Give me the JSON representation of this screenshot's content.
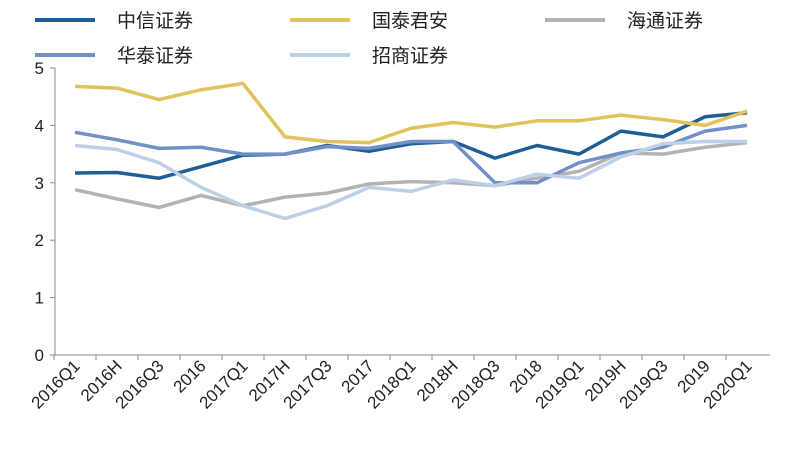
{
  "chart_data": {
    "type": "line",
    "title": "",
    "xlabel": "",
    "ylabel": "",
    "ylim": [
      0,
      5
    ],
    "yticks": [
      "0",
      "1",
      "2",
      "3",
      "4",
      "5"
    ],
    "grid": false,
    "legend": "top",
    "categories": [
      "2016Q1",
      "2016H",
      "2016Q3",
      "2016",
      "2017Q1",
      "2017H",
      "2017Q3",
      "2017",
      "2018Q1",
      "2018H",
      "2018Q3",
      "2018",
      "2019Q1",
      "2019H",
      "2019Q3",
      "2019",
      "2020Q1"
    ],
    "series": [
      {
        "name": "中信证券",
        "color": "#1f5f95",
        "values": [
          3.17,
          3.18,
          3.08,
          3.28,
          3.48,
          3.5,
          3.65,
          3.55,
          3.68,
          3.72,
          3.43,
          3.65,
          3.5,
          3.9,
          3.8,
          4.15,
          4.22
        ]
      },
      {
        "name": "国泰君安",
        "color": "#e2c25a",
        "values": [
          4.68,
          4.65,
          4.45,
          4.62,
          4.73,
          3.8,
          3.72,
          3.7,
          3.95,
          4.05,
          3.97,
          4.08,
          4.08,
          4.18,
          4.1,
          4.0,
          4.25
        ]
      },
      {
        "name": "海通证券",
        "color": "#b3b3b3",
        "values": [
          2.88,
          2.72,
          2.57,
          2.78,
          2.6,
          2.75,
          2.82,
          2.98,
          3.02,
          3.0,
          2.95,
          3.08,
          3.2,
          3.52,
          3.5,
          3.62,
          3.7
        ]
      },
      {
        "name": "华泰证券",
        "color": "#7191c6",
        "values": [
          3.88,
          3.75,
          3.6,
          3.62,
          3.5,
          3.5,
          3.63,
          3.6,
          3.72,
          3.72,
          3.0,
          3.0,
          3.35,
          3.52,
          3.62,
          3.9,
          4.0
        ]
      },
      {
        "name": "招商证券",
        "color": "#bdd0e9",
        "values": [
          3.65,
          3.58,
          3.35,
          2.92,
          2.6,
          2.38,
          2.6,
          2.92,
          2.85,
          3.05,
          2.95,
          3.15,
          3.08,
          3.45,
          3.68,
          3.72,
          3.72
        ]
      }
    ]
  }
}
